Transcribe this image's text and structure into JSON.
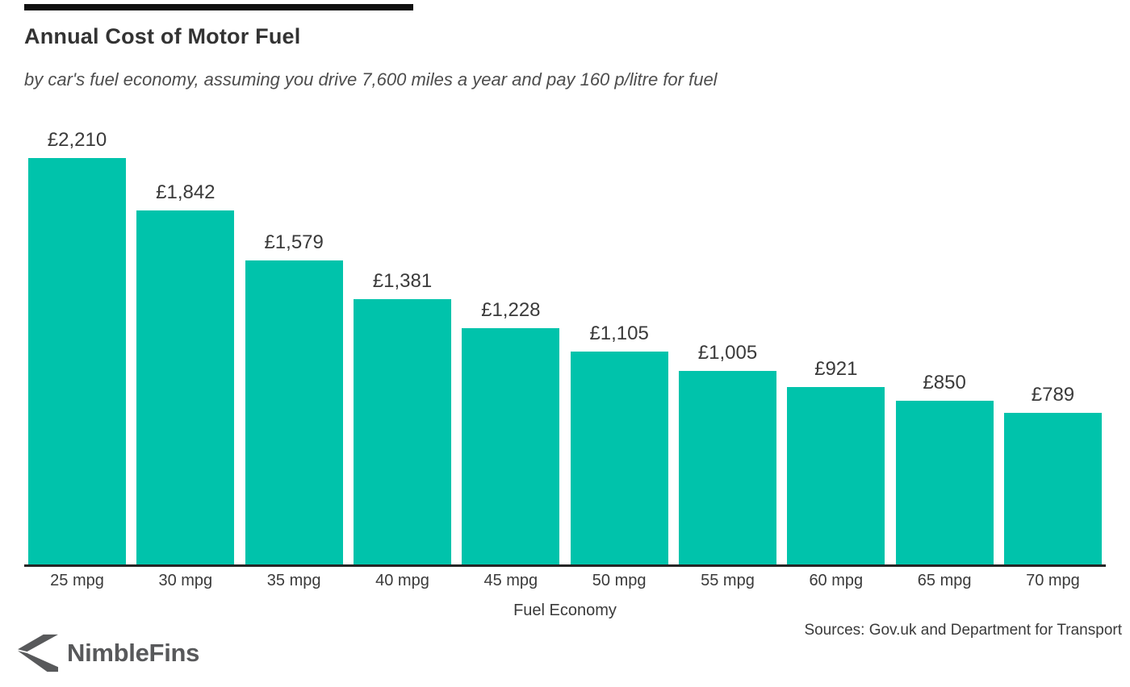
{
  "header": {
    "title": "Annual Cost of Motor Fuel",
    "subtitle": "by car's fuel economy, assuming you drive 7,600 miles a year and pay 160 p/litre for fuel"
  },
  "chart_data": {
    "type": "bar",
    "title": "Annual Cost of Motor Fuel",
    "subtitle": "by car's fuel economy, assuming you drive 7,600 miles a year and pay 160 p/litre for fuel",
    "categories": [
      "25 mpg",
      "30 mpg",
      "35 mpg",
      "40 mpg",
      "45 mpg",
      "50 mpg",
      "55 mpg",
      "60 mpg",
      "65 mpg",
      "70 mpg"
    ],
    "values": [
      2210,
      1842,
      1579,
      1381,
      1228,
      1105,
      1005,
      921,
      850,
      789
    ],
    "value_labels": [
      "£2,210",
      "£1,842",
      "£1,579",
      "£1,381",
      "£1,228",
      "£1,105",
      "£1,005",
      "£921",
      "£850",
      "£789"
    ],
    "xlabel": "Fuel Economy",
    "ylabel": "",
    "ylim": [
      0,
      2210
    ],
    "grid": false,
    "legend": false,
    "bar_color": "#00c3ab",
    "axis_color": "#262626",
    "accent_bar_color": "#101010",
    "data_label_position": "above-bars"
  },
  "footer": {
    "logo_text": "NimbleFins",
    "logo_color": "#58595b",
    "sources": "Sources: Gov.uk and Department for Transport"
  }
}
